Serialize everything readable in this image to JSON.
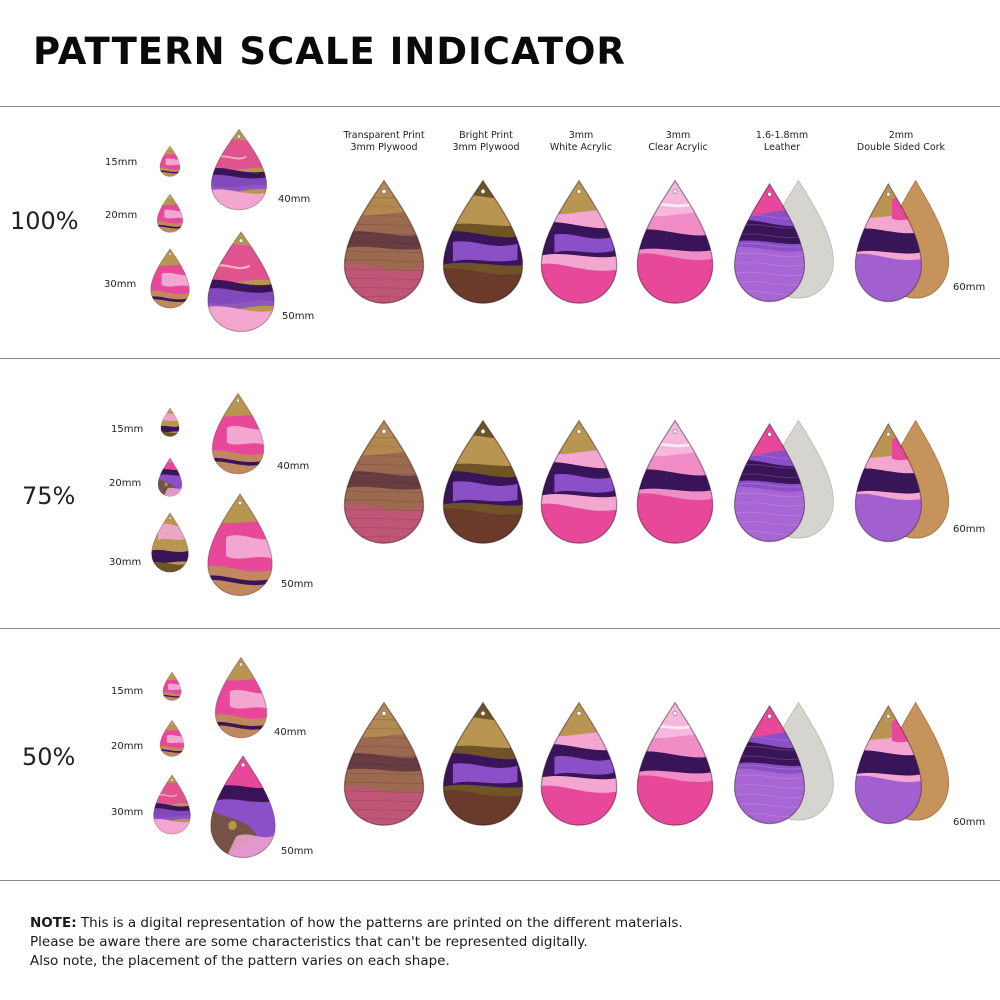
{
  "title": "PATTERN SCALE INDICATOR",
  "materials": [
    {
      "line1": "Transparent Print",
      "line2": "3mm Plywood",
      "kind": "plywood-transparent"
    },
    {
      "line1": "Bright Print",
      "line2": "3mm Plywood",
      "kind": "plywood-bright"
    },
    {
      "line1": "3mm",
      "line2": "White Acrylic",
      "kind": "acrylic-white"
    },
    {
      "line1": "3mm",
      "line2": "Clear Acrylic",
      "kind": "acrylic-clear"
    },
    {
      "line1": "1.6-1.8mm",
      "line2": "Leather",
      "kind": "leather"
    },
    {
      "line1": "2mm",
      "line2": "Double Sided Cork",
      "kind": "cork"
    }
  ],
  "sizes": [
    "15mm",
    "20mm",
    "30mm",
    "40mm",
    "50mm"
  ],
  "big_size": "60mm",
  "scales": [
    {
      "label": "100%"
    },
    {
      "label": "75%"
    },
    {
      "label": "50%"
    }
  ],
  "note": {
    "lead": "NOTE:",
    "line1": " This is a digital representation of how the patterns are printed on the different materials.",
    "line2": "Please be aware there are some characteristics that can't be represented digitally.",
    "line3": "Also note, the placement of the pattern varies on each shape."
  },
  "colors": {
    "pink": "#e8489a",
    "light_pink": "#f2a6d0",
    "purple": "#8b4fc7",
    "dark_purple": "#3a1458",
    "gold": "#b99552",
    "dark_gold": "#6e5426",
    "wood": "#9c6a50",
    "suede": "#d6d4cf",
    "cork": "#c5935b"
  }
}
